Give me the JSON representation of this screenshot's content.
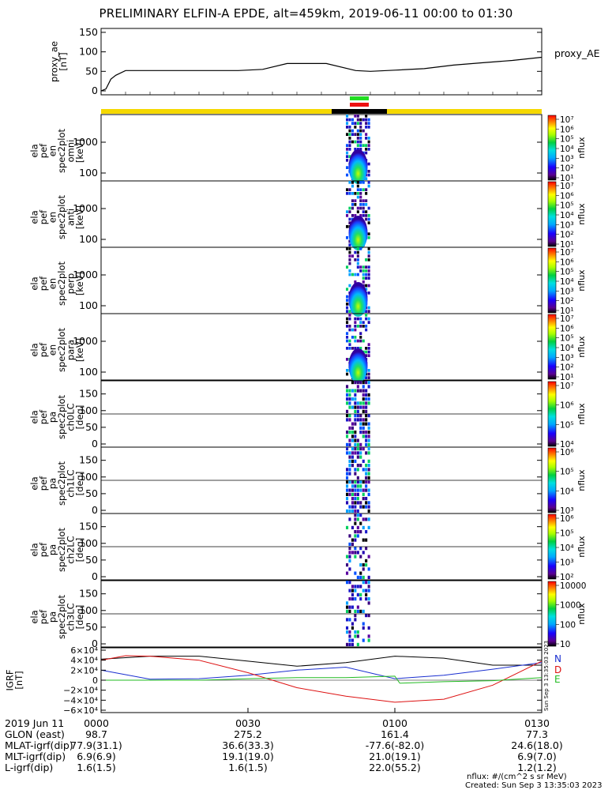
{
  "title": "PRELIMINARY ELFIN-A EPDE, alt=459km, 2019-06-11 00:00 to 01:30",
  "panels": {
    "ae": {
      "ylabel": [
        "proxy_ae",
        "[nT]"
      ],
      "yticks": [
        "150",
        "100",
        "50",
        "0"
      ],
      "legend": "proxy_AE"
    },
    "energy": [
      {
        "ylabel": [
          "ela",
          "pef",
          "en",
          "spec2plot",
          "omni",
          "[keV]"
        ],
        "yticks": [
          "1000",
          "100"
        ]
      },
      {
        "ylabel": [
          "ela",
          "pef",
          "en",
          "spec2plot",
          "anti",
          "[keV]"
        ],
        "yticks": [
          "1000",
          "100"
        ]
      },
      {
        "ylabel": [
          "ela",
          "pef",
          "en",
          "spec2plot",
          "perp",
          "[keV]"
        ],
        "yticks": [
          "1000",
          "100"
        ]
      },
      {
        "ylabel": [
          "ela",
          "pef",
          "en",
          "spec2plot",
          "para",
          "[keV]"
        ],
        "yticks": [
          "1000",
          "100"
        ]
      }
    ],
    "pitch": [
      {
        "ylabel": [
          "ela",
          "pef",
          "pa",
          "spec2plot",
          "ch0LC",
          "[deg]"
        ],
        "yticks": [
          "150",
          "100",
          "50",
          "0"
        ]
      },
      {
        "ylabel": [
          "ela",
          "pef",
          "pa",
          "spec2plot",
          "ch1LC",
          "[deg]"
        ],
        "yticks": [
          "150",
          "100",
          "50",
          "0"
        ]
      },
      {
        "ylabel": [
          "ela",
          "pef",
          "pa",
          "spec2plot",
          "ch2LC",
          "[deg]"
        ],
        "yticks": [
          "150",
          "100",
          "50",
          "0"
        ]
      },
      {
        "ylabel": [
          "ela",
          "pef",
          "pa",
          "spec2plot",
          "ch3LC",
          "[deg]"
        ],
        "yticks": [
          "150",
          "100",
          "50",
          "0"
        ]
      }
    ],
    "igrf": {
      "ylabel": [
        "IGRF",
        "[nT]"
      ],
      "yticks": [
        "6×10⁴",
        "4×10⁴",
        "2×10⁴",
        "0",
        "−2×10⁴",
        "−4×10⁴",
        "−6×10⁴"
      ],
      "components": [
        "N",
        "D",
        "E"
      ],
      "stamp": "Sun Sep 3 13:35:03 2023"
    }
  },
  "colorbars": {
    "unit": "nflux",
    "cb1": [
      "10⁷",
      "10⁶",
      "10⁵",
      "10⁴",
      "10³",
      "10²",
      "10¹"
    ],
    "cb5": [
      "10⁷",
      "10⁶",
      "10⁵",
      "10⁴"
    ],
    "cb6": [
      "10⁶",
      "10⁵",
      "10⁴",
      "10³"
    ],
    "cb7": [
      "10⁶",
      "10⁵",
      "10⁴",
      "10³",
      "10²"
    ],
    "cb8": [
      "10000",
      "1000",
      "100",
      "10"
    ]
  },
  "footer": {
    "labels": [
      "2019 Jun 11",
      "GLON (east)",
      "MLAT-igrf(dip)",
      "MLT-igrf(dip)",
      "L-igrf(dip)"
    ],
    "columns": [
      [
        "0000",
        "98.7",
        "77.9(31.1)",
        "6.9(6.9)",
        "1.6(1.5)"
      ],
      [
        "0030",
        "275.2",
        "36.6(33.3)",
        "19.1(19.0)",
        "1.6(1.5)"
      ],
      [
        "0100",
        "161.4",
        "-77.6(-82.0)",
        "21.0(19.1)",
        "22.0(55.2)"
      ],
      [
        "0130",
        "77.3",
        "24.6(18.0)",
        "6.9(7.0)",
        "1.2(1.2)"
      ]
    ],
    "unit_note": "nflux: #/(cm^2 s sr MeV)",
    "created": "Created: Sun Sep  3 13:35:03 2023"
  },
  "colors": {
    "frame": "#000000",
    "status_yellow": "#f5d800",
    "status_black": "#000000",
    "bar_green": "#22dd22",
    "bar_red": "#ee1111",
    "igrf_N": "#1a2fd0",
    "igrf_D": "#dd1111",
    "igrf_E": "#22bb22"
  },
  "chart_data": {
    "type": "heatmap",
    "title": "PRELIMINARY ELFIN-A EPDE, alt=459km, 2019-06-11 00:00 to 01:30",
    "x_range": [
      "00:00",
      "01:30"
    ],
    "x_tick_labels": [
      "0000",
      "0030",
      "0100",
      "0130"
    ],
    "proxy_ae": {
      "type": "line",
      "ylim": [
        0,
        160
      ],
      "times_min": [
        0,
        1,
        2,
        3,
        5,
        10,
        20,
        28,
        33,
        38,
        46,
        52,
        55,
        60,
        66,
        72,
        78,
        84,
        90
      ],
      "values": [
        0,
        5,
        30,
        40,
        52,
        52,
        52,
        52,
        55,
        70,
        70,
        52,
        50,
        53,
        57,
        66,
        72,
        78,
        86
      ]
    },
    "spectrograms": {
      "energy_ylim_keV": [
        50,
        7000
      ],
      "pitch_ylim_deg": [
        0,
        180
      ],
      "active_window_min": [
        50,
        55
      ],
      "colorbar_range": [
        10,
        10000000
      ]
    },
    "igrf": {
      "type": "line",
      "ylim": [
        -60000,
        60000
      ],
      "series": [
        {
          "name": "N",
          "times_min": [
            0,
            10,
            20,
            30,
            40,
            50,
            60,
            70,
            80,
            90
          ],
          "values": [
            20000,
            2000,
            3000,
            10000,
            20000,
            26000,
            3000,
            10000,
            22000,
            35000
          ]
        },
        {
          "name": "D",
          "times_min": [
            0,
            5,
            10,
            20,
            30,
            40,
            50,
            60,
            70,
            80,
            90
          ],
          "values": [
            40000,
            49000,
            48000,
            40000,
            15000,
            -15000,
            -32000,
            -44000,
            -38000,
            -10000,
            38000
          ]
        },
        {
          "name": "E",
          "times_min": [
            0,
            20,
            30,
            40,
            50,
            60,
            61,
            70,
            80,
            90
          ],
          "values": [
            0,
            0,
            3000,
            5000,
            5000,
            8000,
            -6000,
            -3000,
            -1000,
            5000
          ]
        }
      ],
      "extra_series": {
        "times_min": [
          0,
          10,
          20,
          30,
          40,
          50,
          60,
          70,
          80,
          90
        ],
        "values": [
          42000,
          48000,
          48000,
          38000,
          28000,
          35000,
          48000,
          44000,
          30000,
          30000
        ]
      }
    }
  }
}
